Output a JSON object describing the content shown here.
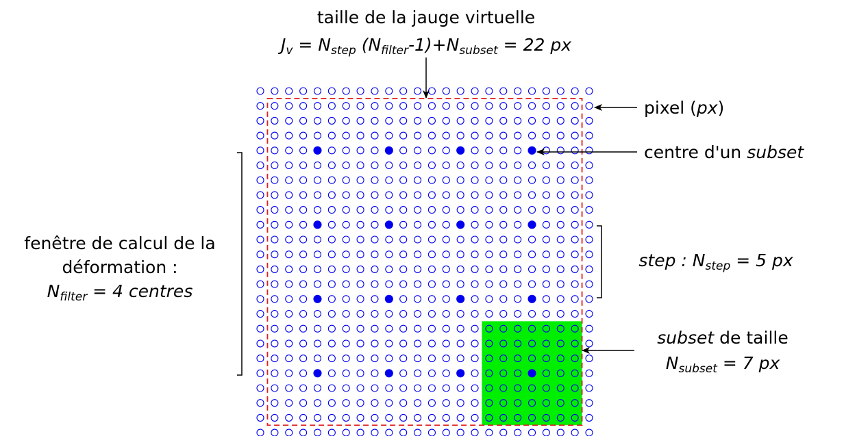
{
  "title": "taille de la jauge virtuelle",
  "formula": [
    "J",
    "v",
    " = N",
    "step",
    " (N",
    "filter",
    "-1)+N",
    "subset",
    " = 22 px"
  ],
  "pixel": [
    "pixel (",
    "px",
    ")"
  ],
  "centre": [
    "centre d'un ",
    "subset"
  ],
  "window": {
    "lines": [
      "fenêtre de calcul de la",
      "déformation :"
    ],
    "formula": [
      "N",
      "filter",
      " = 4 centres"
    ]
  },
  "step": [
    "step : N",
    "step",
    " = 5 px"
  ],
  "subset": {
    "line": [
      "subset",
      " de taille"
    ],
    "formula": [
      "N",
      "subset",
      " = 7 px"
    ]
  }
}
